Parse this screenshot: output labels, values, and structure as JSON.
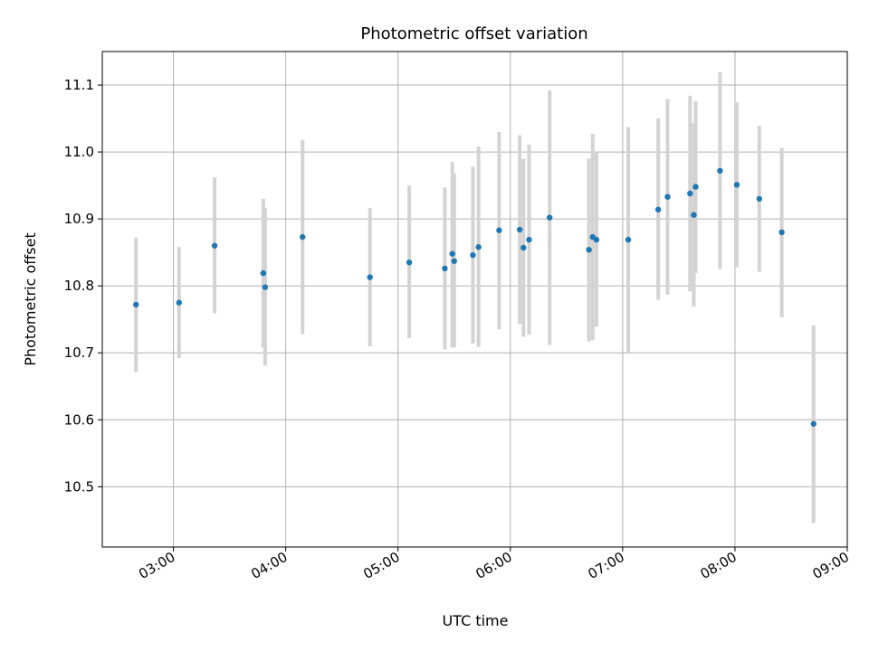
{
  "chart_data": {
    "type": "scatter",
    "title": "Photometric offset variation",
    "xlabel": "UTC time",
    "ylabel": "Photometric offset",
    "x_tick_labels": [
      "03:00",
      "04:00",
      "05:00",
      "06:00",
      "07:00",
      "08:00",
      "09:00"
    ],
    "y_tick_labels": [
      "10.5",
      "10.6",
      "10.7",
      "10.8",
      "10.9",
      "11.0",
      "11.1"
    ],
    "x_tick_values": [
      "03:00",
      "04:00",
      "05:00",
      "06:00",
      "07:00",
      "08:00",
      "09:00"
    ],
    "y_tick_values": [
      10.5,
      10.6,
      10.7,
      10.8,
      10.9,
      11.0,
      11.1
    ],
    "xlim": [
      "02:22",
      "09:00"
    ],
    "ylim": [
      10.41,
      11.15
    ],
    "grid": true,
    "colors": {
      "point": "#1f77b4",
      "errorbar": "#d3d3d3",
      "grid": "#b0b0b0"
    },
    "points": [
      {
        "x": "02:40",
        "y": 10.772,
        "yerr_low": 10.671,
        "yerr_high": 10.872
      },
      {
        "x": "03:03",
        "y": 10.775,
        "yerr_low": 10.692,
        "yerr_high": 10.858
      },
      {
        "x": "03:22",
        "y": 10.86,
        "yerr_low": 10.759,
        "yerr_high": 10.962
      },
      {
        "x": "03:48",
        "y": 10.819,
        "yerr_low": 10.708,
        "yerr_high": 10.93
      },
      {
        "x": "03:49",
        "y": 10.798,
        "yerr_low": 10.681,
        "yerr_high": 10.916
      },
      {
        "x": "04:09",
        "y": 10.873,
        "yerr_low": 10.728,
        "yerr_high": 11.018
      },
      {
        "x": "04:45",
        "y": 10.813,
        "yerr_low": 10.71,
        "yerr_high": 10.916
      },
      {
        "x": "05:06",
        "y": 10.835,
        "yerr_low": 10.722,
        "yerr_high": 10.95
      },
      {
        "x": "05:25",
        "y": 10.826,
        "yerr_low": 10.705,
        "yerr_high": 10.947
      },
      {
        "x": "05:29",
        "y": 10.848,
        "yerr_low": 10.708,
        "yerr_high": 10.985
      },
      {
        "x": "05:30",
        "y": 10.837,
        "yerr_low": 10.708,
        "yerr_high": 10.968
      },
      {
        "x": "05:40",
        "y": 10.846,
        "yerr_low": 10.714,
        "yerr_high": 10.978
      },
      {
        "x": "05:43",
        "y": 10.858,
        "yerr_low": 10.709,
        "yerr_high": 11.008
      },
      {
        "x": "05:54",
        "y": 10.883,
        "yerr_low": 10.735,
        "yerr_high": 11.03
      },
      {
        "x": "06:05",
        "y": 10.884,
        "yerr_low": 10.743,
        "yerr_high": 11.025
      },
      {
        "x": "06:07",
        "y": 10.857,
        "yerr_low": 10.724,
        "yerr_high": 10.99
      },
      {
        "x": "06:10",
        "y": 10.869,
        "yerr_low": 10.727,
        "yerr_high": 11.011
      },
      {
        "x": "06:21",
        "y": 10.902,
        "yerr_low": 10.712,
        "yerr_high": 11.092
      },
      {
        "x": "06:42",
        "y": 10.854,
        "yerr_low": 10.717,
        "yerr_high": 10.99
      },
      {
        "x": "06:44",
        "y": 10.873,
        "yerr_low": 10.719,
        "yerr_high": 11.027
      },
      {
        "x": "06:46",
        "y": 10.869,
        "yerr_low": 10.739,
        "yerr_high": 11.0
      },
      {
        "x": "07:03",
        "y": 10.869,
        "yerr_low": 10.7,
        "yerr_high": 11.037
      },
      {
        "x": "07:19",
        "y": 10.914,
        "yerr_low": 10.779,
        "yerr_high": 11.05
      },
      {
        "x": "07:24",
        "y": 10.933,
        "yerr_low": 10.787,
        "yerr_high": 11.079
      },
      {
        "x": "07:36",
        "y": 10.938,
        "yerr_low": 10.792,
        "yerr_high": 11.084
      },
      {
        "x": "07:38",
        "y": 10.906,
        "yerr_low": 10.769,
        "yerr_high": 11.043
      },
      {
        "x": "07:39",
        "y": 10.948,
        "yerr_low": 10.819,
        "yerr_high": 11.076
      },
      {
        "x": "07:52",
        "y": 10.972,
        "yerr_low": 10.825,
        "yerr_high": 11.119
      },
      {
        "x": "08:01",
        "y": 10.951,
        "yerr_low": 10.828,
        "yerr_high": 11.074
      },
      {
        "x": "08:13",
        "y": 10.93,
        "yerr_low": 10.821,
        "yerr_high": 11.039
      },
      {
        "x": "08:25",
        "y": 10.88,
        "yerr_low": 10.753,
        "yerr_high": 11.006
      },
      {
        "x": "08:42",
        "y": 10.594,
        "yerr_low": 10.446,
        "yerr_high": 10.741
      }
    ]
  }
}
